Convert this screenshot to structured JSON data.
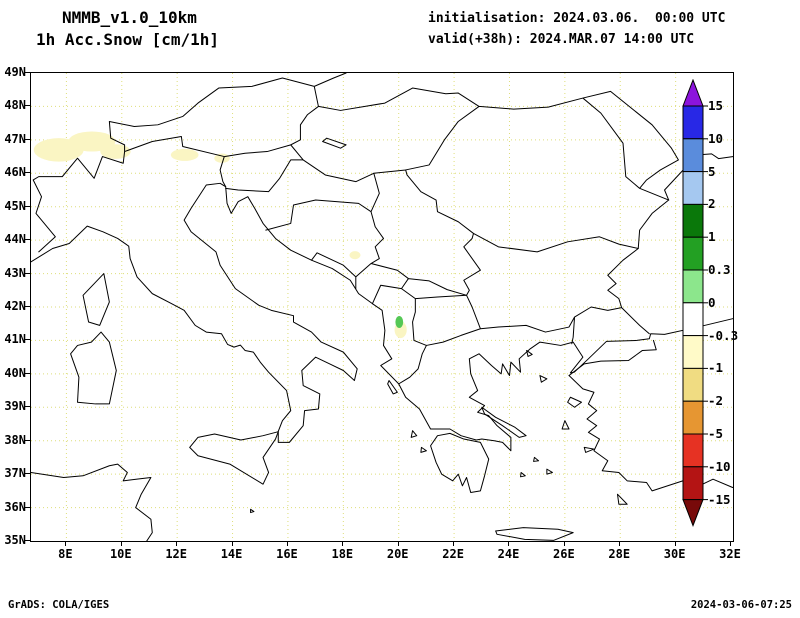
{
  "header": {
    "model": "NMMB_v1.0_10km",
    "variable": "1h Acc.Snow [cm/1h]",
    "initialisation": "initialisation: 2024.03.06.  00:00 UTC",
    "valid": "valid(+38h): 2024.MAR.07 14:00 UTC"
  },
  "map": {
    "lat_labels": [
      "49N",
      "48N",
      "47N",
      "46N",
      "45N",
      "44N",
      "43N",
      "42N",
      "41N",
      "40N",
      "39N",
      "38N",
      "37N",
      "36N",
      "35N"
    ],
    "lon_labels": [
      "8E",
      "10E",
      "12E",
      "14E",
      "16E",
      "18E",
      "20E",
      "22E",
      "24E",
      "26E",
      "28E",
      "30E",
      "32E"
    ],
    "grid_color": "#DEDE7A",
    "coast_color": "#000000",
    "snow_patch_color": "#FAF5C3",
    "snow_spot_color": "#55C855"
  },
  "colorbar": {
    "labels": [
      "15",
      "10",
      "5",
      "2",
      "1",
      "0.3",
      "0",
      "-0.3",
      "-1",
      "-2",
      "-5",
      "-10",
      "-15"
    ],
    "colors": [
      "#8C14DC",
      "#2828E6",
      "#5A8CDC",
      "#A5C8F0",
      "#0A780A",
      "#23A023",
      "#8CE68C",
      "#FFFFFF",
      "#FFFAC8",
      "#F0DC82",
      "#E69632",
      "#E63223",
      "#B41414",
      "#780A0A"
    ]
  },
  "footer": {
    "left": "GrADS: COLA/IGES",
    "right": "2024-03-06-07:25"
  }
}
